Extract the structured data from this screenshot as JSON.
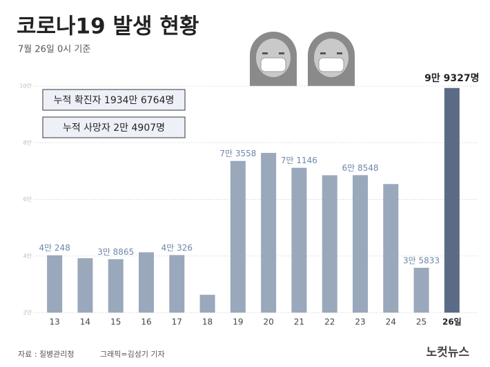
{
  "chart_data": {
    "type": "bar",
    "title": "코로나19 발생 현황",
    "subtitle": "7월 26일 0시 기준",
    "annotations": [
      "누적 확진자 1934만 6764명",
      "누적 사망자 2만 4907명"
    ],
    "categories": [
      "13",
      "14",
      "15",
      "16",
      "17",
      "18",
      "19",
      "20",
      "21",
      "22",
      "23",
      "24",
      "25",
      "26일"
    ],
    "values": [
      40248,
      39200,
      38865,
      41300,
      40326,
      26300,
      73558,
      76400,
      71146,
      68500,
      68548,
      65400,
      35833,
      99327
    ],
    "value_labels": [
      "4만 248",
      null,
      "3만 8865",
      null,
      "4만 326",
      null,
      "7만 3558",
      null,
      "7만 1146",
      null,
      "6만 8548",
      null,
      "3만 5833",
      "9만 9327명"
    ],
    "colors": [
      "#9aa8bc",
      "#9aa8bc",
      "#9aa8bc",
      "#9aa8bc",
      "#9aa8bc",
      "#9aa8bc",
      "#9aa8bc",
      "#9aa8bc",
      "#9aa8bc",
      "#9aa8bc",
      "#9aa8bc",
      "#9aa8bc",
      "#9aa8bc",
      "#5b6b85"
    ],
    "ylim": [
      20000,
      100000
    ],
    "yticks": [
      {
        "value": 20000,
        "label": "2만"
      },
      {
        "value": 40000,
        "label": "4만"
      },
      {
        "value": 60000,
        "label": "6만"
      },
      {
        "value": 80000,
        "label": "8만"
      },
      {
        "value": 100000,
        "label": "10만"
      }
    ],
    "grid": true,
    "source": "자료 : 질병관리청",
    "credit": "그래픽=김성기 기자",
    "logo": "노컷뉴스"
  }
}
